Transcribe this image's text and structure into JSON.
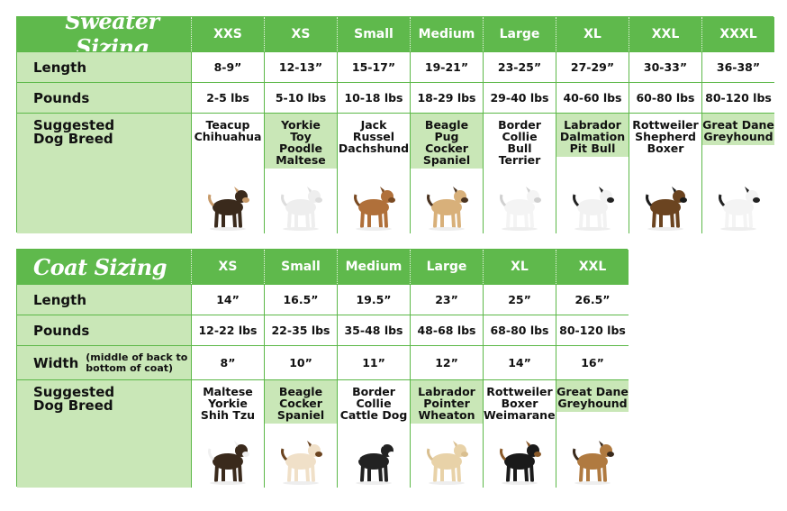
{
  "sweater": {
    "title": "Sweater Sizing",
    "sizes": [
      "XXS",
      "XS",
      "Small",
      "Medium",
      "Large",
      "XL",
      "XXL",
      "XXXL"
    ],
    "rows": [
      {
        "label": "Length",
        "cells": [
          "8-9”",
          "12-13”",
          "15-17”",
          "19-21”",
          "23-25”",
          "27-29”",
          "30-33”",
          "36-38”"
        ]
      },
      {
        "label": "Pounds",
        "cells": [
          "2-5 lbs",
          "5-10 lbs",
          "10-18 lbs",
          "18-29 lbs",
          "29-40 lbs",
          "40-60 lbs",
          "60-80 lbs",
          "80-120 lbs"
        ]
      },
      {
        "label": "Suggested Dog Breed",
        "cells": [
          [
            "Teacup",
            "Chihuahua"
          ],
          [
            "Yorkie",
            "Toy",
            "Poodle",
            "Maltese"
          ],
          [
            "Jack",
            "Russel",
            "Dachshund"
          ],
          [
            "Beagle",
            "Pug",
            "Cocker",
            "Spaniel"
          ],
          [
            "Border",
            "Collie",
            "Bull",
            "Terrier"
          ],
          [
            "Labrador",
            "Dalmation",
            "Pit Bull"
          ],
          [
            "Rottweiler",
            "Shepherd",
            "Boxer"
          ],
          [
            "Great Dane",
            "Greyhound"
          ]
        ]
      }
    ]
  },
  "coat": {
    "title": "Coat Sizing",
    "sizes": [
      "XS",
      "Small",
      "Medium",
      "Large",
      "XL",
      "XXL"
    ],
    "rows": [
      {
        "label": "Length",
        "cells": [
          "14”",
          "16.5”",
          "19.5”",
          "23”",
          "25”",
          "26.5”"
        ]
      },
      {
        "label": "Pounds",
        "cells": [
          "12-22 lbs",
          "22-35 lbs",
          "35-48 lbs",
          "48-68 lbs",
          "68-80 lbs",
          "80-120 lbs"
        ]
      },
      {
        "label": "Width",
        "note": "(middle of back to bottom of coat)",
        "cells": [
          "8”",
          "10”",
          "11”",
          "12”",
          "14”",
          "16”"
        ]
      },
      {
        "label": "Suggested Dog Breed",
        "cells": [
          [
            "Maltese",
            "Yorkie",
            "Shih Tzu"
          ],
          [
            "Beagle",
            "Cocker",
            "Spaniel"
          ],
          [
            "Border",
            "Collie",
            "Cattle Dog"
          ],
          [
            "Labrador",
            "Pointer",
            "Wheaton"
          ],
          [
            "Rottweiler",
            "Boxer",
            "Weimaraner"
          ],
          [
            "Great Dane",
            "Greyhound"
          ]
        ]
      }
    ]
  }
}
